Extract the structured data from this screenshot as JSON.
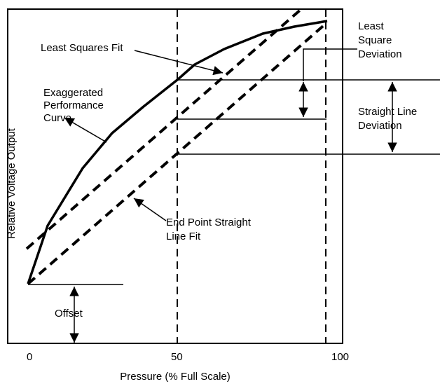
{
  "axes": {
    "x_label": "Pressure (% Full Scale)",
    "y_label": "Relative Voltage Output",
    "x_ticks": [
      "0",
      "50",
      "100"
    ]
  },
  "labels": {
    "least_squares_fit": "Least Squares Fit",
    "exaggerated": [
      "Exaggerated",
      "Performance",
      "Curve"
    ],
    "least_square_deviation": [
      "Least",
      "Square",
      "Deviation"
    ],
    "straight_line_deviation": [
      "Straight Line",
      "Deviation"
    ],
    "end_point": [
      "End Point Straight",
      "Line Fit"
    ],
    "offset": "Offset"
  }
}
